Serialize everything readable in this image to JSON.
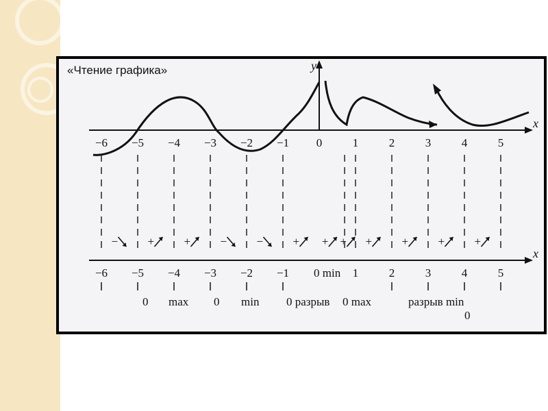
{
  "slide": {
    "accent_color": "#f6e7c2"
  },
  "figure": {
    "title": "«Чтение графика»",
    "x_axis_label": "x",
    "y_axis_label": "y",
    "ticks_top": [
      "−6",
      "−5",
      "−4",
      "−3",
      "−2",
      "−1",
      "0",
      "1",
      "2",
      "3",
      "4",
      "5"
    ],
    "ticks_bottom": [
      "−6",
      "−5",
      "−4",
      "−3",
      "−2",
      "−1",
      "0 min",
      "1",
      "2",
      "3",
      "4",
      "5"
    ],
    "signs": [
      "−",
      "+",
      "+",
      "−",
      "−",
      "+",
      "+",
      "+",
      "+",
      "+",
      "+",
      "+"
    ],
    "annotations": [
      {
        "id": "a1",
        "text": "0"
      },
      {
        "id": "a2",
        "text": "max"
      },
      {
        "id": "a3",
        "text": "0"
      },
      {
        "id": "a4",
        "text": "min"
      },
      {
        "id": "a5",
        "text": "0 разрыв"
      },
      {
        "id": "a6",
        "text": "0 max"
      },
      {
        "id": "a7",
        "text": "разрыв min"
      },
      {
        "id": "a8",
        "text": "0"
      }
    ]
  }
}
